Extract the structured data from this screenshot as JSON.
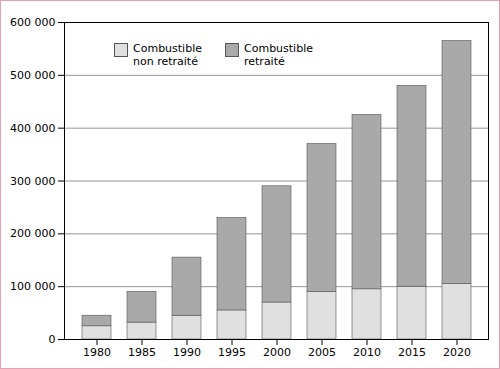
{
  "chart_data": {
    "type": "bar",
    "stacked": true,
    "grid": true,
    "legend": "upper left",
    "categories": [
      "1980",
      "1985",
      "1990",
      "1995",
      "2000",
      "2005",
      "2010",
      "2015",
      "2020"
    ],
    "series": [
      {
        "name": "Combustible non retraité",
        "color": "#e0e0e0",
        "values": [
          25000,
          32000,
          45000,
          55000,
          70000,
          90000,
          95000,
          100000,
          105000
        ]
      },
      {
        "name": "Combustible retraité",
        "color": "#a9a9a9",
        "values": [
          20000,
          58000,
          110000,
          175000,
          220000,
          280000,
          330000,
          380000,
          460000
        ]
      }
    ],
    "ylim": [
      0,
      600000
    ],
    "yticks": [
      0,
      {
        "value": 100000,
        "label": "100 000"
      },
      {
        "value": 200000,
        "label": "200 000"
      },
      {
        "value": 300000,
        "label": "300 000"
      },
      {
        "value": 400000,
        "label": "400 000"
      },
      {
        "value": 500000,
        "label": "500 000"
      },
      {
        "value": 600000,
        "label": "600 000"
      }
    ]
  }
}
